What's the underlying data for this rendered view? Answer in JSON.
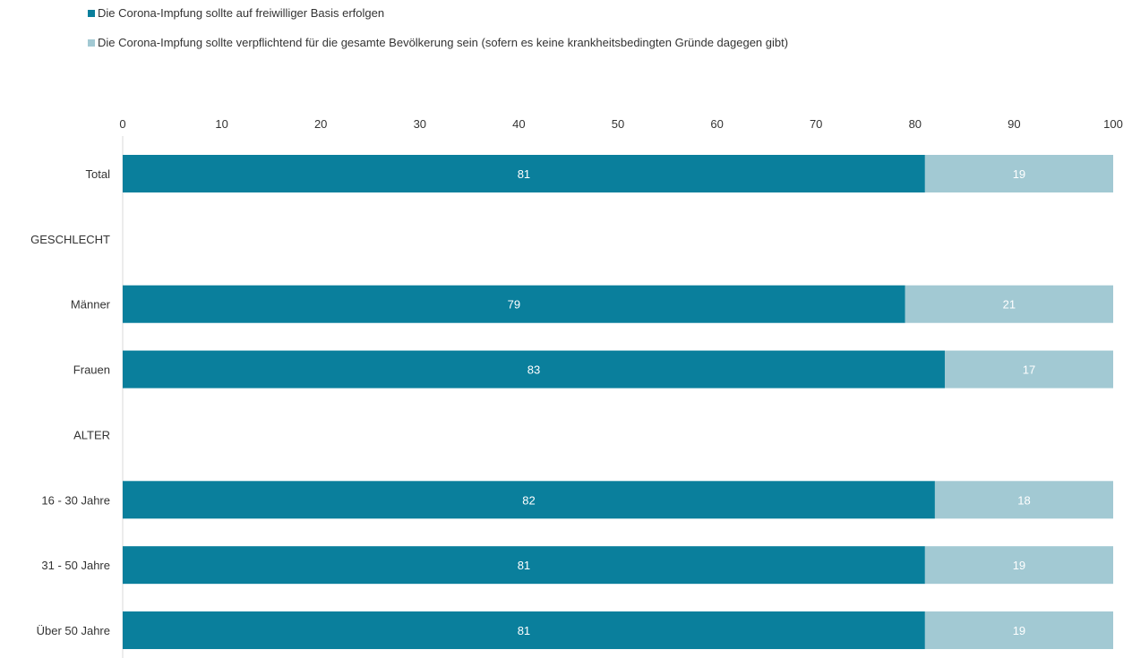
{
  "chart_data": {
    "type": "bar",
    "orientation": "horizontal",
    "stacked": true,
    "categories": [
      "Total",
      "GESCHLECHT",
      "Männer",
      "Frauen",
      "ALTER",
      "16 - 30 Jahre",
      "31 - 50 Jahre",
      "Über 50 Jahre"
    ],
    "series": [
      {
        "name": "Die Corona-Impfung sollte auf freiwilliger Basis erfolgen",
        "color": "#0a7f9c",
        "values": [
          81,
          null,
          79,
          83,
          null,
          82,
          81,
          81
        ]
      },
      {
        "name": "Die Corona-Impfung sollte verpflichtend für die gesamte Bevölkerung sein (sofern es keine krankheitsbedingten Gründe dagegen gibt)",
        "color": "#a2c9d3",
        "values": [
          19,
          null,
          21,
          17,
          null,
          18,
          19,
          19
        ]
      }
    ],
    "xlim": [
      0,
      100
    ],
    "xticks": [
      0,
      10,
      20,
      30,
      40,
      50,
      60,
      70,
      80,
      90,
      100
    ],
    "xaxis_position": "top",
    "grid": false,
    "legend_position": "top-left",
    "data_label_color": "#ffffff",
    "title": "",
    "xlabel": "",
    "ylabel": ""
  }
}
